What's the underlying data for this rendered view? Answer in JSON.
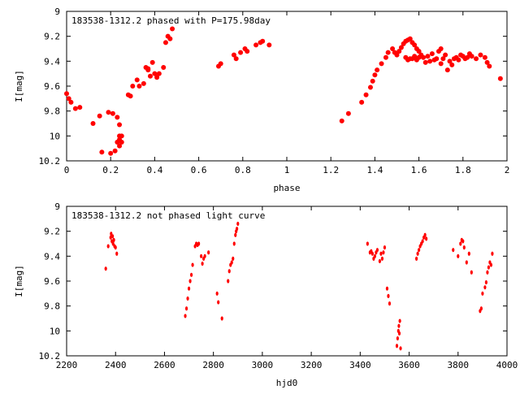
{
  "chart_data": [
    {
      "type": "scatter",
      "title": "183538-1312.2 phased with P=175.98day",
      "xlabel": "phase",
      "ylabel": "I[mag]",
      "xlim": [
        0,
        2
      ],
      "ylim": [
        10.2,
        9
      ],
      "y_inverted": true,
      "xticks": [
        "0",
        "0.2",
        "0.4",
        "0.6",
        "0.8",
        "1",
        "1.2",
        "1.4",
        "1.6",
        "1.8",
        "2"
      ],
      "yticks": [
        "9",
        "9.2",
        "9.4",
        "9.6",
        "9.8",
        "10",
        "10.2"
      ],
      "grid": false,
      "marker_color": "#ff0000",
      "series": [
        {
          "x": [
            0.0,
            0.01,
            0.02,
            0.04,
            0.06,
            0.12,
            0.15,
            0.16,
            0.19,
            0.2,
            0.21,
            0.22,
            0.23,
            0.24,
            0.24,
            0.25,
            0.23,
            0.24,
            0.25,
            0.24,
            0.28,
            0.29,
            0.3,
            0.32,
            0.33,
            0.35,
            0.36,
            0.37,
            0.37,
            0.38,
            0.39,
            0.4,
            0.41,
            0.42,
            0.44,
            0.45,
            0.46,
            0.47,
            0.48,
            0.69,
            0.7,
            0.76,
            0.77,
            0.79,
            0.81,
            0.82,
            0.86,
            0.88,
            0.89,
            0.92,
            1.25,
            1.28,
            1.34,
            1.36,
            1.38,
            1.39,
            1.4,
            1.41,
            1.43,
            1.45,
            1.46,
            1.48,
            1.49,
            1.5,
            1.51,
            1.52,
            1.53,
            1.54,
            1.54,
            1.55,
            1.55,
            1.56,
            1.56,
            1.57,
            1.57,
            1.58,
            1.58,
            1.59,
            1.59,
            1.6,
            1.6,
            1.61,
            1.62,
            1.63,
            1.64,
            1.65,
            1.66,
            1.67,
            1.68,
            1.69,
            1.7,
            1.7,
            1.71,
            1.72,
            1.73,
            1.74,
            1.75,
            1.76,
            1.77,
            1.78,
            1.79,
            1.8,
            1.81,
            1.82,
            1.83,
            1.84,
            1.86,
            1.88,
            1.9,
            1.91,
            1.92,
            1.97
          ],
          "y": [
            9.66,
            9.7,
            9.73,
            9.78,
            9.77,
            9.9,
            9.84,
            10.13,
            9.81,
            10.14,
            9.82,
            10.12,
            10.05,
            10.03,
            10.0,
            10.0,
            9.85,
            9.91,
            10.05,
            10.08,
            9.67,
            9.68,
            9.6,
            9.55,
            9.6,
            9.58,
            9.45,
            9.47,
            9.46,
            9.52,
            9.41,
            9.5,
            9.53,
            9.5,
            9.45,
            9.25,
            9.2,
            9.22,
            9.14,
            9.44,
            9.42,
            9.35,
            9.38,
            9.33,
            9.3,
            9.32,
            9.27,
            9.25,
            9.24,
            9.27,
            9.88,
            9.82,
            9.73,
            9.67,
            9.61,
            9.56,
            9.51,
            9.47,
            9.42,
            9.37,
            9.33,
            9.3,
            9.33,
            9.35,
            9.32,
            9.29,
            9.26,
            9.24,
            9.37,
            9.23,
            9.39,
            9.22,
            9.38,
            9.25,
            9.38,
            9.27,
            9.36,
            9.3,
            9.39,
            9.32,
            9.37,
            9.35,
            9.37,
            9.41,
            9.36,
            9.4,
            9.34,
            9.39,
            9.38,
            9.32,
            9.42,
            9.3,
            9.38,
            9.35,
            9.47,
            9.4,
            9.43,
            9.38,
            9.37,
            9.39,
            9.35,
            9.36,
            9.38,
            9.37,
            9.34,
            9.36,
            9.38,
            9.35,
            9.37,
            9.41,
            9.44,
            9.54
          ]
        }
      ]
    },
    {
      "type": "scatter",
      "title": "183538-1312.2 not phased light curve",
      "xlabel": "hjd0",
      "ylabel": "I[mag]",
      "xlim": [
        2200,
        4000
      ],
      "ylim": [
        10.2,
        9
      ],
      "y_inverted": true,
      "xticks": [
        "2200",
        "2400",
        "2600",
        "2800",
        "3000",
        "3200",
        "3400",
        "3600",
        "3800",
        "4000"
      ],
      "yticks": [
        "9",
        "9.2",
        "9.4",
        "9.6",
        "9.8",
        "10",
        "10.2"
      ],
      "grid": false,
      "marker_color": "#ff0000",
      "series": [
        {
          "x": [
            2360,
            2370,
            2380,
            2382,
            2385,
            2388,
            2390,
            2393,
            2396,
            2400,
            2405,
            2685,
            2690,
            2695,
            2700,
            2705,
            2710,
            2715,
            2725,
            2730,
            2735,
            2740,
            2750,
            2755,
            2760,
            2765,
            2780,
            2815,
            2820,
            2835,
            2860,
            2865,
            2870,
            2875,
            2880,
            2885,
            2890,
            2893,
            2896,
            2900,
            3430,
            3440,
            3445,
            3450,
            3455,
            3460,
            3465,
            3470,
            3480,
            3485,
            3490,
            3495,
            3500,
            3510,
            3515,
            3520,
            3550,
            3553,
            3556,
            3558,
            3560,
            3562,
            3565,
            3630,
            3635,
            3640,
            3645,
            3650,
            3655,
            3660,
            3665,
            3670,
            3780,
            3800,
            3810,
            3815,
            3820,
            3825,
            3835,
            3845,
            3855,
            3890,
            3895,
            3900,
            3910,
            3915,
            3920,
            3925,
            3930,
            3935,
            3940
          ],
          "y": [
            9.5,
            9.32,
            9.25,
            9.22,
            9.28,
            9.24,
            9.3,
            9.27,
            9.32,
            9.33,
            9.38,
            9.88,
            9.82,
            9.74,
            9.66,
            9.6,
            9.55,
            9.47,
            9.32,
            9.3,
            9.31,
            9.3,
            9.4,
            9.46,
            9.42,
            9.4,
            9.37,
            9.7,
            9.77,
            9.9,
            9.6,
            9.52,
            9.47,
            9.45,
            9.42,
            9.3,
            9.23,
            9.2,
            9.18,
            9.14,
            9.3,
            9.37,
            9.36,
            9.38,
            9.42,
            9.4,
            9.37,
            9.35,
            9.44,
            9.38,
            9.42,
            9.37,
            9.33,
            9.66,
            9.72,
            9.78,
            10.12,
            10.06,
            10.0,
            9.96,
            10.02,
            9.92,
            10.14,
            9.42,
            9.38,
            9.35,
            9.32,
            9.3,
            9.28,
            9.25,
            9.23,
            9.26,
            9.35,
            9.4,
            9.3,
            9.27,
            9.28,
            9.33,
            9.45,
            9.38,
            9.53,
            9.84,
            9.82,
            9.7,
            9.65,
            9.61,
            9.53,
            9.49,
            9.45,
            9.47,
            9.38
          ]
        }
      ]
    }
  ]
}
